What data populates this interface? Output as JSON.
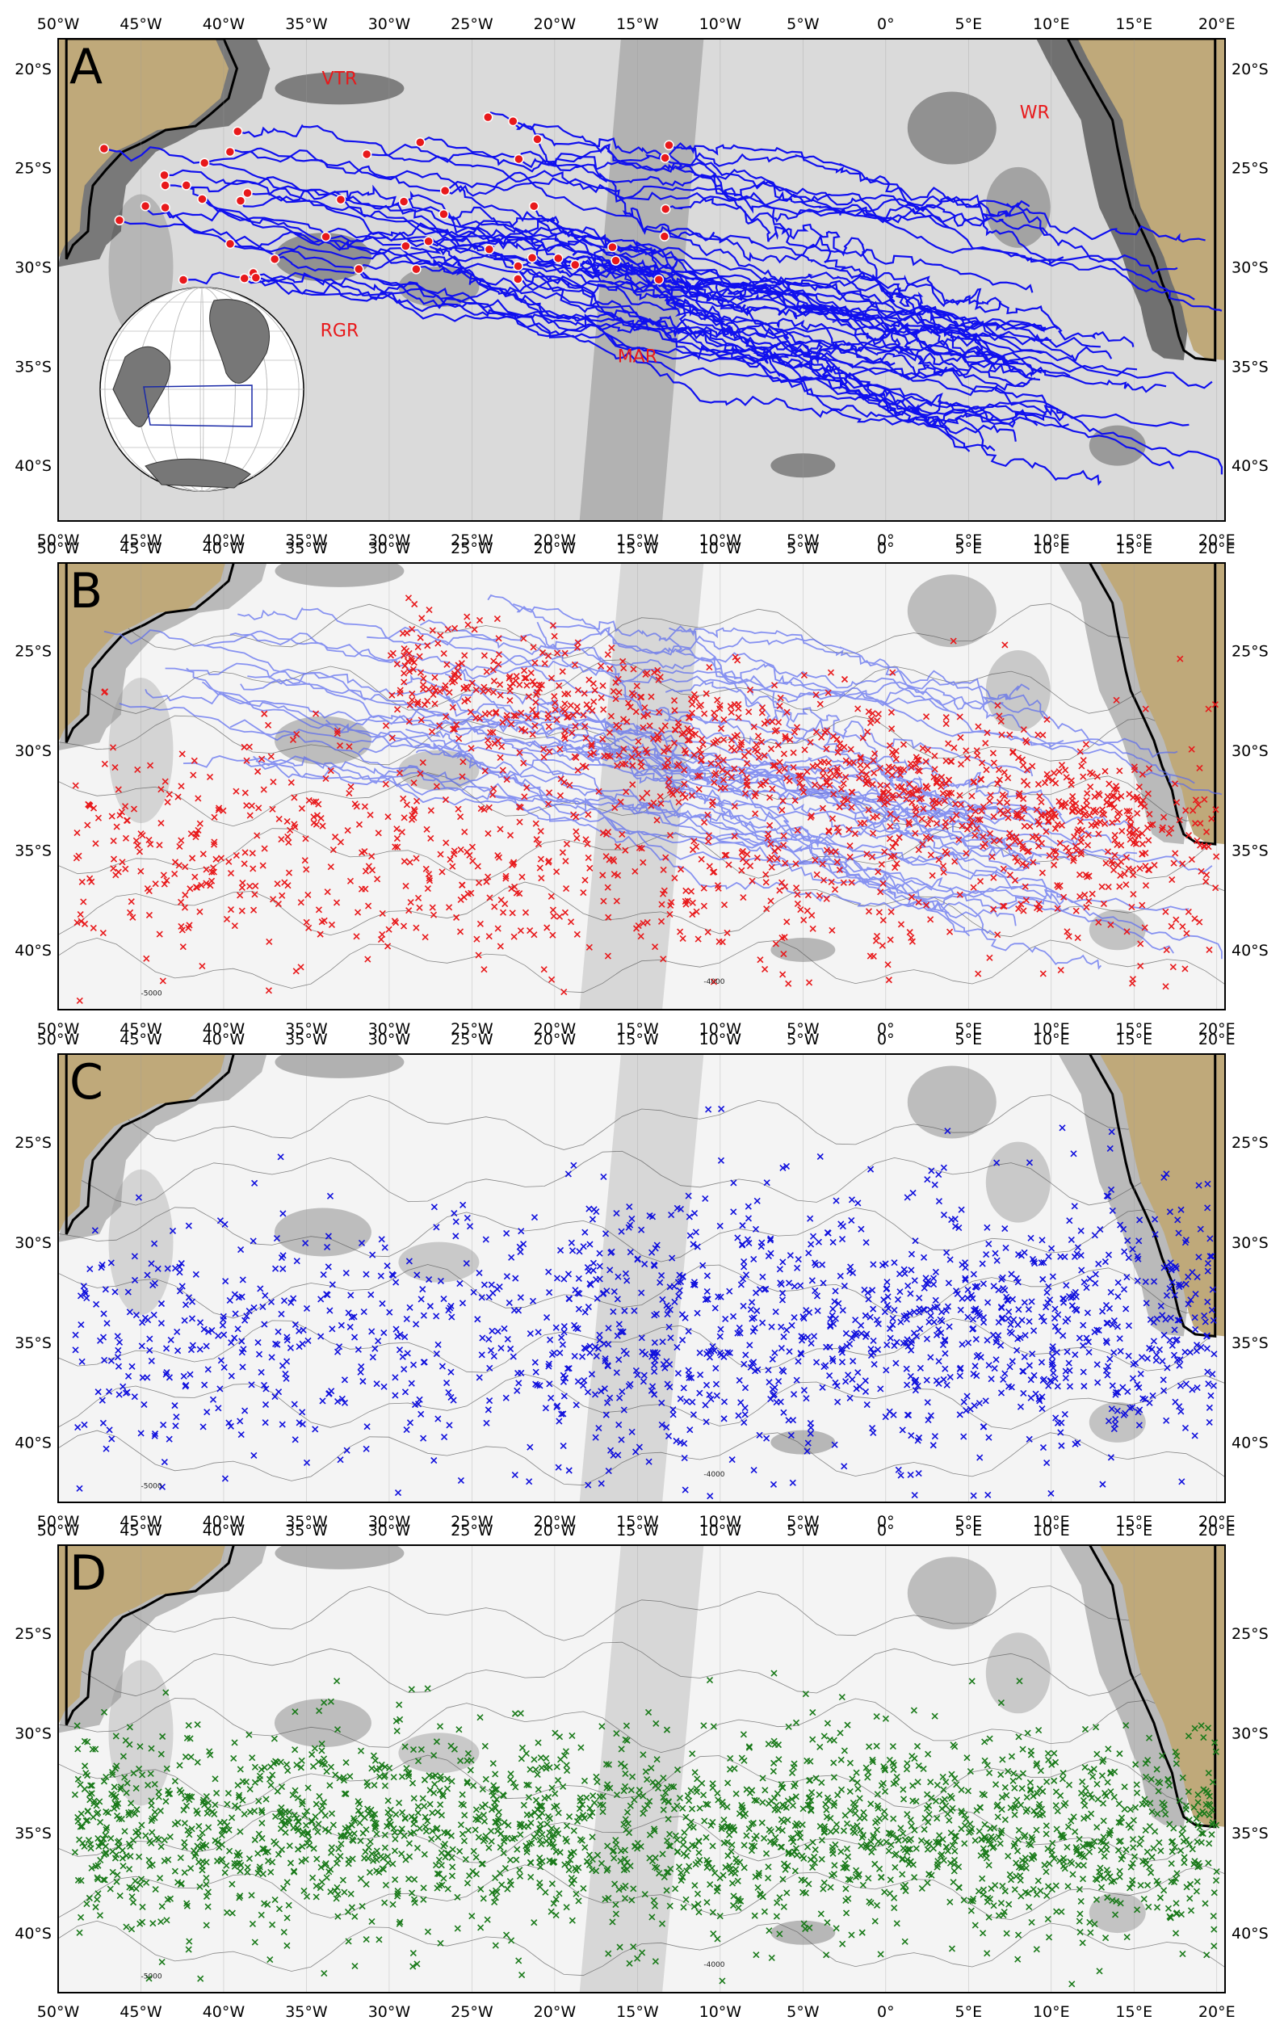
{
  "figure": {
    "lon_ticks": [
      "50°W",
      "45°W",
      "40°W",
      "35°W",
      "30°W",
      "25°W",
      "20°W",
      "15°W",
      "10°W",
      "5°W",
      "0°",
      "5°E",
      "10°E",
      "15°E",
      "20°E"
    ],
    "colors": {
      "land": "#bfa97a",
      "ocean_light": "#f4f4f4",
      "ocean_mid": "#c8c8c8",
      "ocean_dark": "#6a6a6a",
      "frame": "#000000",
      "annotation": "#e8191b"
    }
  },
  "panels": [
    {
      "letter": "A",
      "lat_ticks": [
        "20°S",
        "25°S",
        "30°S",
        "35°S",
        "40°S"
      ],
      "annotations": [
        "VTR",
        "WR",
        "RGR",
        "MAR"
      ],
      "layers": [
        {
          "kind": "trajectories",
          "color": "#1010ee",
          "description_icon": "float-trajectory-lines"
        },
        {
          "kind": "release-points",
          "color": "#e8191b",
          "description_icon": "red-dot-markers"
        }
      ],
      "inset": {
        "kind": "globe-locator",
        "box_color": "#1a2aa8"
      }
    },
    {
      "letter": "B",
      "lat_ticks": [
        "25°S",
        "30°S",
        "35°S",
        "40°S"
      ],
      "contour_labels": [
        "-5000",
        "-4000"
      ],
      "layers": [
        {
          "kind": "trajectories",
          "color": "#5a6af0"
        },
        {
          "kind": "x-markers",
          "color": "#e8191b"
        }
      ]
    },
    {
      "letter": "C",
      "lat_ticks": [
        "25°S",
        "30°S",
        "35°S",
        "40°S"
      ],
      "contour_labels": [
        "-5000",
        "-4000"
      ],
      "layers": [
        {
          "kind": "x-markers",
          "color": "#1010dd"
        }
      ]
    },
    {
      "letter": "D",
      "lat_ticks": [
        "25°S",
        "30°S",
        "35°S",
        "40°S"
      ],
      "contour_labels": [
        "-5000",
        "-4000"
      ],
      "layers": [
        {
          "kind": "x-markers",
          "color": "#1a7a1a"
        }
      ]
    }
  ]
}
